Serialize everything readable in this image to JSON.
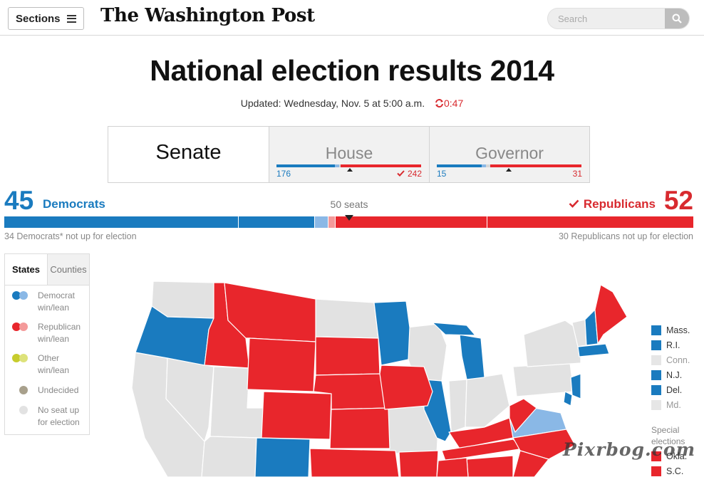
{
  "header": {
    "sections_label": "Sections",
    "logo": "The Washington Post",
    "search_placeholder": "Search"
  },
  "title": "National election results 2014",
  "updated": {
    "text": "Updated: Wednesday, Nov. 5 at 5:00 a.m.",
    "refresh_countdown": "0:47"
  },
  "tabs": [
    {
      "label": "Senate",
      "active": true
    },
    {
      "label": "House",
      "dem": "176",
      "rep": "242",
      "dem_fraction": 0.405,
      "rep_fraction": 0.556
    },
    {
      "label": "Governor",
      "dem": "15",
      "rep": "31",
      "dem_fraction": 0.31,
      "rep_fraction": 0.63
    }
  ],
  "senate": {
    "dem_count": "45",
    "dem_label": "Democrats",
    "rep_count": "52",
    "rep_label": "Republicans",
    "center_label": "50 seats",
    "dem_note": "34 Democrats* not up for election",
    "rep_note": "30 Republicans not up for election",
    "bar": {
      "dem_not_up": 34,
      "dem_won": 11,
      "dem_lean": 2,
      "rep_lean": 1,
      "rep_won": 22,
      "rep_not_up": 30
    }
  },
  "legend": {
    "tabs": [
      "States",
      "Counties"
    ],
    "items": [
      {
        "label": "Democrat win/lean",
        "colors": [
          "#1a7bbf",
          "#8ab8e6"
        ]
      },
      {
        "label": "Republican win/lean",
        "colors": [
          "#e8262c",
          "#f49a9a"
        ]
      },
      {
        "label": "Other win/lean",
        "colors": [
          "#c7cc2d",
          "#dde27a"
        ]
      },
      {
        "label": "Undecided",
        "colors": [
          "#a8a08c"
        ]
      },
      {
        "label": "No seat up for election",
        "colors": [
          "#e2e2e2"
        ]
      }
    ]
  },
  "right_legend": {
    "items": [
      {
        "label": "Mass.",
        "color": "#1a7bbf"
      },
      {
        "label": "R.I.",
        "color": "#1a7bbf"
      },
      {
        "label": "Conn.",
        "color": "#e6e6e6"
      },
      {
        "label": "N.J.",
        "color": "#1a7bbf"
      },
      {
        "label": "Del.",
        "color": "#1a7bbf"
      },
      {
        "label": "Md.",
        "color": "#e6e6e6"
      }
    ],
    "special_label": "Special elections",
    "special_items": [
      {
        "label": "Okla.",
        "color": "#e8262c"
      },
      {
        "label": "S.C.",
        "color": "#e8262c"
      }
    ]
  },
  "colors": {
    "dem": "#1a7bbf",
    "dem_lean": "#8ab8e6",
    "rep": "#e8262c",
    "rep_lean": "#f49a9a",
    "none": "#e2e2e2"
  },
  "watermark": "Pixrbog.com"
}
